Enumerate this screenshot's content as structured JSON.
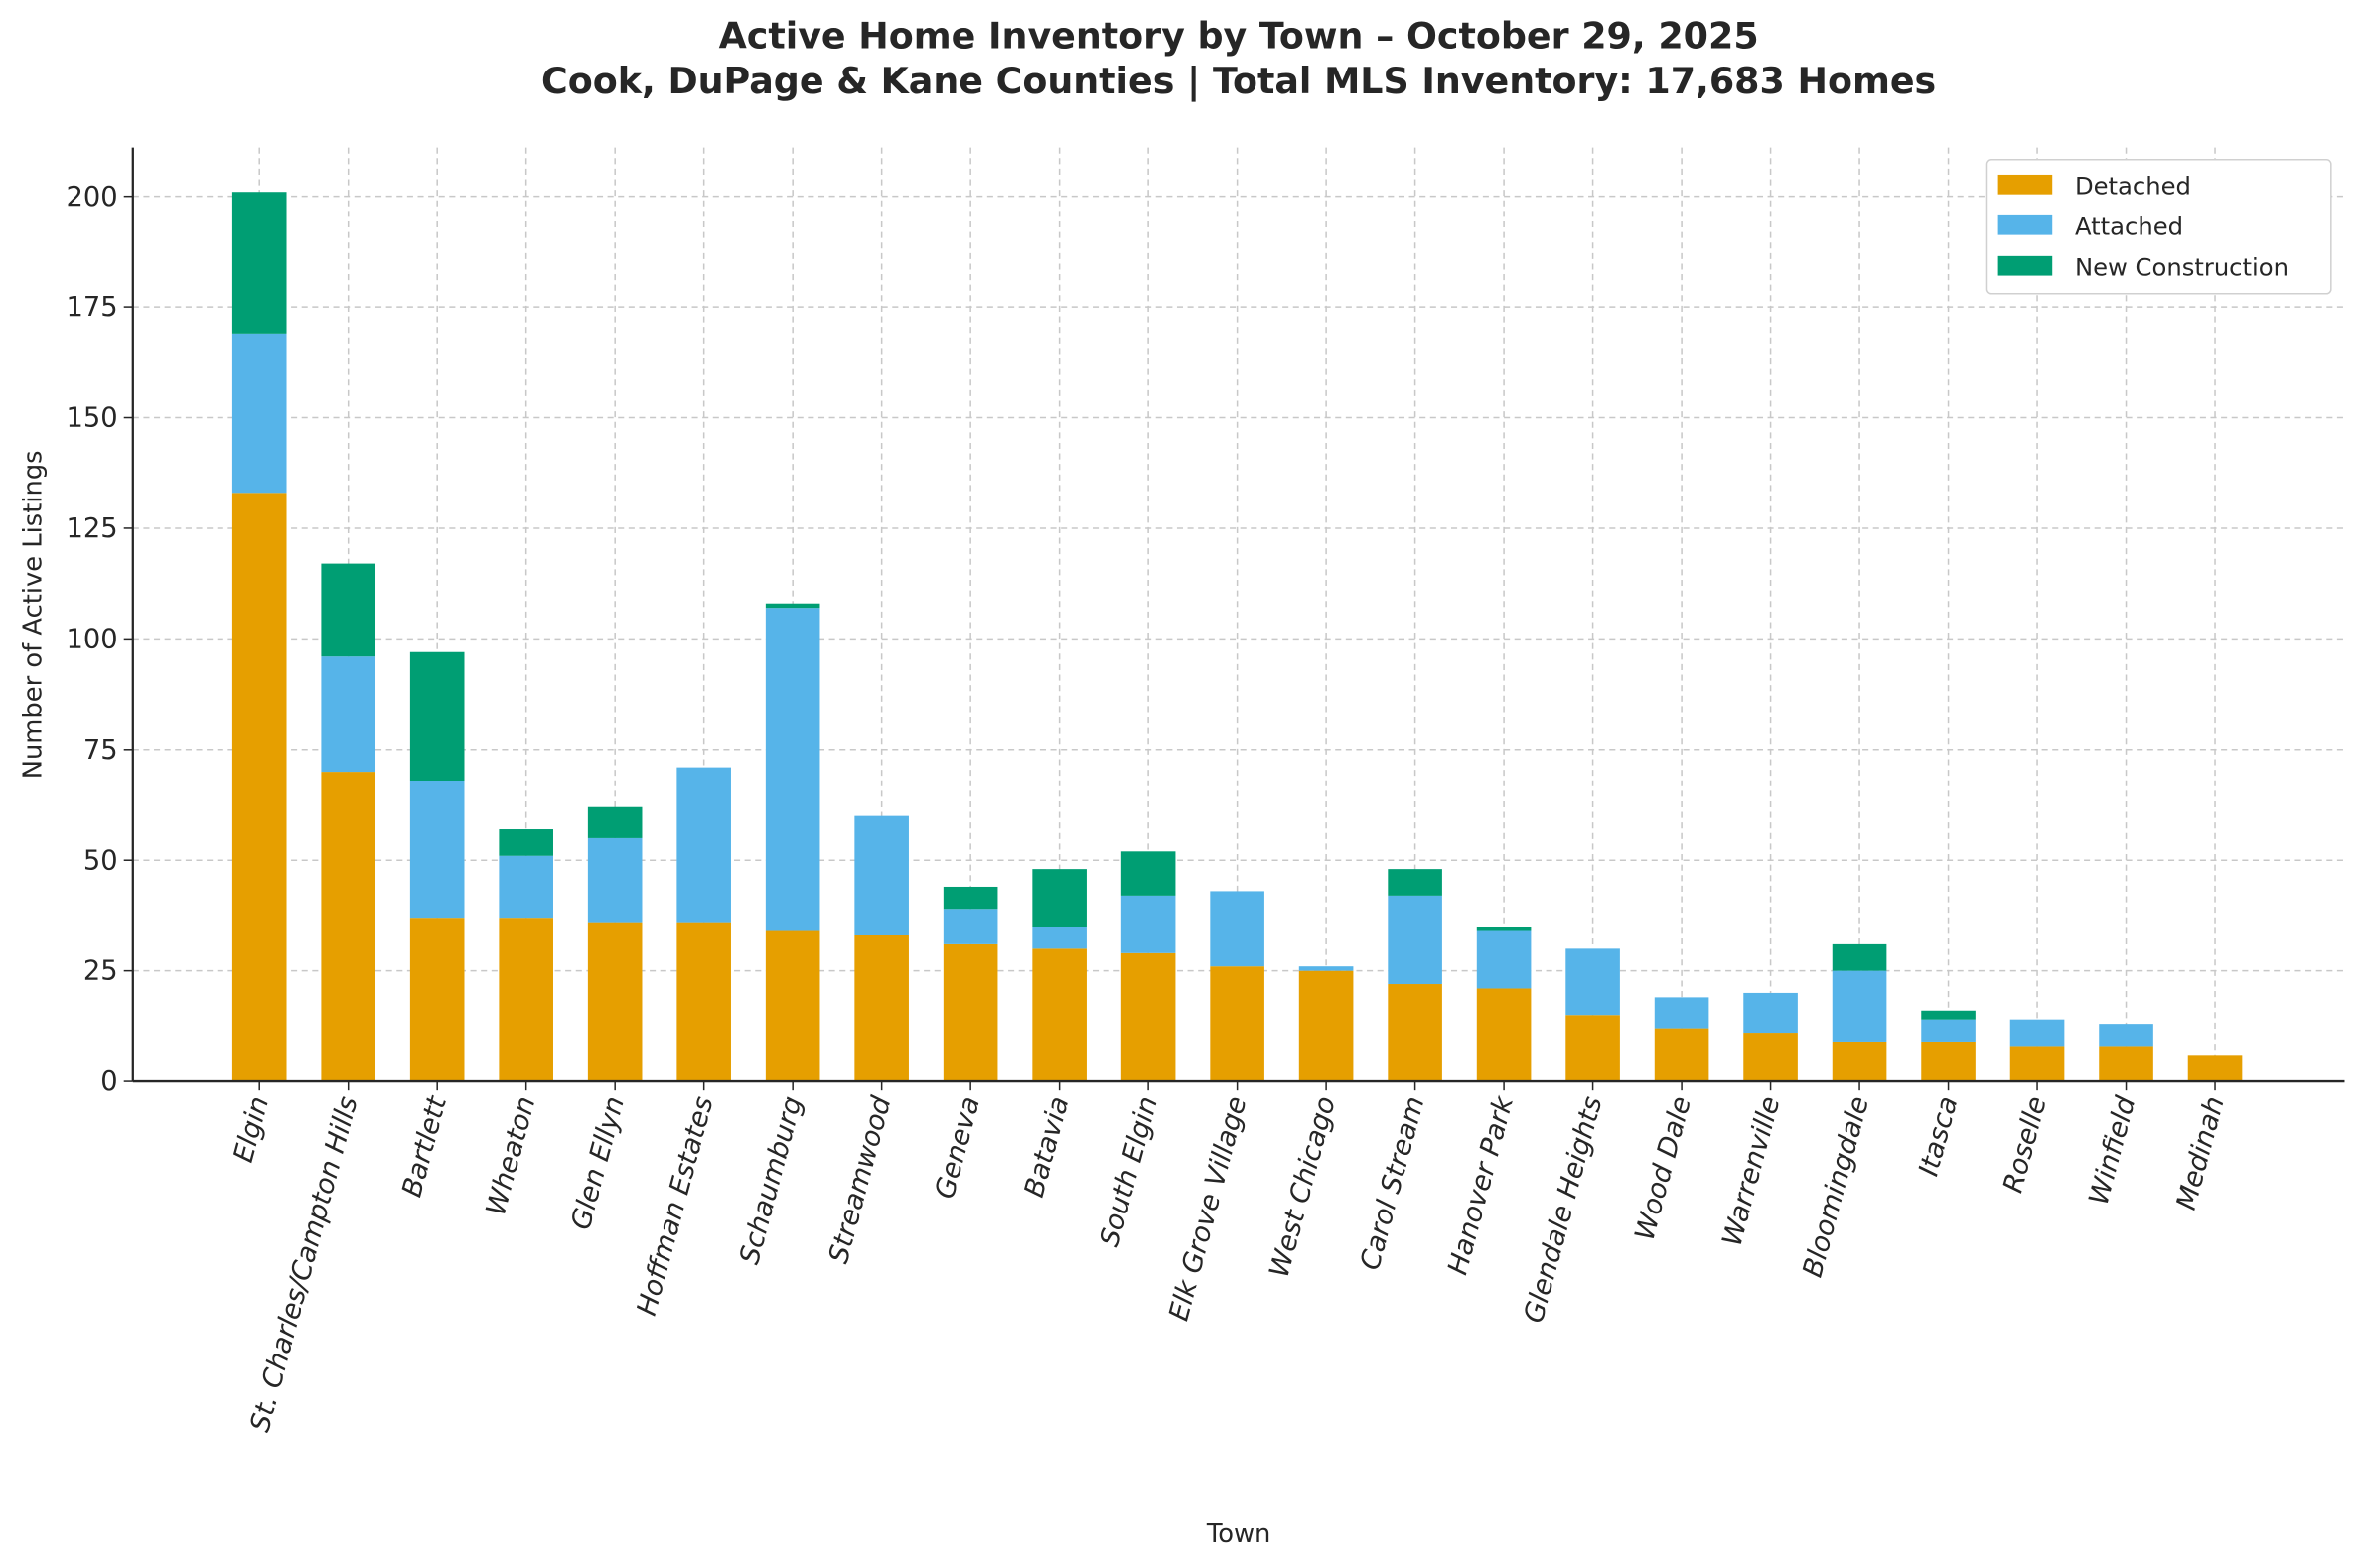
{
  "chart_data": {
    "type": "bar",
    "stacked": true,
    "title": "Active Home Inventory by Town – October 29, 2025",
    "subtitle": "Cook, DuPage & Kane Counties | Total MLS Inventory: 17,683 Homes",
    "xlabel": "Town",
    "ylabel": "Number of Active Listings",
    "ylim": [
      0,
      211
    ],
    "yticks": [
      0,
      25,
      50,
      75,
      100,
      125,
      150,
      175,
      200
    ],
    "grid": true,
    "legend_position": "top-right",
    "categories": [
      "Elgin",
      "St. Charles/Campton Hills",
      "Bartlett",
      "Wheaton",
      "Glen Ellyn",
      "Hoffman Estates",
      "Schaumburg",
      "Streamwood",
      "Geneva",
      "Batavia",
      "South Elgin",
      "Elk Grove Village",
      "West Chicago",
      "Carol Stream",
      "Hanover Park",
      "Glendale Heights",
      "Wood Dale",
      "Warrenville",
      "Bloomingdale",
      "Itasca",
      "Roselle",
      "Winfield",
      "Medinah"
    ],
    "series": [
      {
        "name": "Detached",
        "color": "#E69F00",
        "values": [
          133,
          70,
          37,
          37,
          36,
          36,
          34,
          33,
          31,
          30,
          29,
          26,
          25,
          22,
          21,
          15,
          12,
          11,
          9,
          9,
          8,
          8,
          6
        ]
      },
      {
        "name": "Attached",
        "color": "#56B4E9",
        "values": [
          36,
          26,
          31,
          14,
          19,
          35,
          73,
          27,
          8,
          5,
          13,
          17,
          1,
          20,
          13,
          15,
          7,
          9,
          16,
          5,
          6,
          5,
          0
        ]
      },
      {
        "name": "New Construction",
        "color": "#009E73",
        "values": [
          32,
          21,
          29,
          6,
          7,
          0,
          1,
          0,
          5,
          13,
          10,
          0,
          0,
          6,
          1,
          0,
          0,
          0,
          6,
          2,
          0,
          0,
          0
        ]
      }
    ]
  }
}
